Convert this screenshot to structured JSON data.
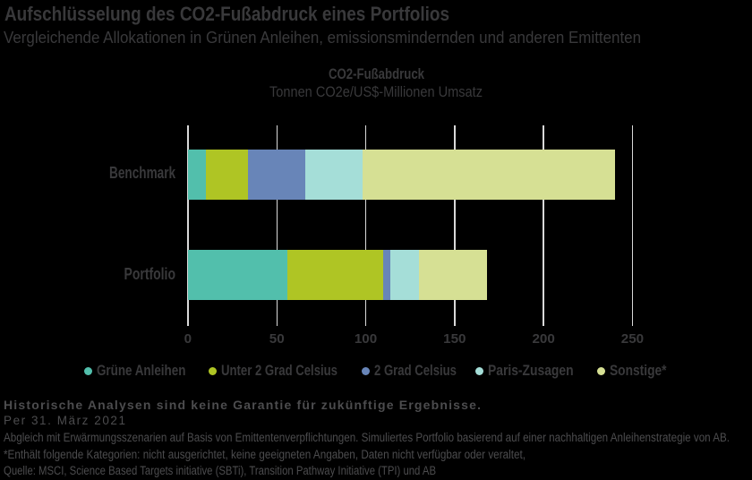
{
  "title": "Aufschlüsselung des CO2-Fußabdruck eines Portfolios",
  "subtitle": "Vergleichende Allokationen in Grünen Anleihen, emissionsmindernden und anderen Emittenten",
  "chart_data": {
    "type": "bar",
    "orientation": "horizontal",
    "stacked": true,
    "title": "CO2-Fußabdruck",
    "units_label": "Tonnen CO2e/US$-Millionen Umsatz",
    "categories": [
      "Benchmark",
      "Portfolio"
    ],
    "series": [
      {
        "name": "Grüne Anleihen",
        "color": "#52BFAC",
        "values": [
          10,
          56
        ]
      },
      {
        "name": "Unter 2 Grad Celsius",
        "color": "#AFC524",
        "values": [
          24,
          54
        ]
      },
      {
        "name": "2 Grad Celsius",
        "color": "#6885B8",
        "values": [
          32,
          4
        ]
      },
      {
        "name": "Paris-Zusagen",
        "color": "#A5DED8",
        "values": [
          32,
          16
        ]
      },
      {
        "name": "Sonstige*",
        "color": "#D6E094",
        "values": [
          142,
          38
        ]
      }
    ],
    "totals": [
      240,
      168
    ],
    "xlim": [
      0,
      250
    ],
    "x_ticks": [
      0,
      50,
      100,
      150,
      200,
      250
    ],
    "grid": "vertical",
    "legend_position": "bottom",
    "gridline_color": "#d9d9d9",
    "background_color": "#000000"
  },
  "footnotes": [
    {
      "text": "Historische Analysen sind keine Garantie für zukünftige Ergebnisse.",
      "bold": true
    },
    {
      "text": "Per 31. März 2021",
      "bold": false
    },
    {
      "text": "Abgleich mit Erwärmungsszenarien auf Basis von Emittentenverpflichtungen. Simuliertes Portfolio basierend auf einer nachhaltigen Anleihenstrategie von AB.",
      "bold": false
    },
    {
      "text": "*Enthält folgende Kategorien: nicht ausgerichtet, keine geeigneten Angaben, Daten nicht verfügbar oder veraltet,",
      "bold": false
    },
    {
      "text": "Quelle: MSCI, Science Based Targets initiative (SBTi), Transition Pathway Initiative (TPI) und AB",
      "bold": false
    }
  ]
}
